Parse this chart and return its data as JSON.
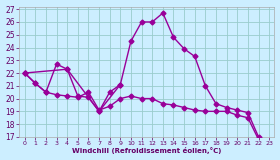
{
  "xlabel": "Windchill (Refroidissement éolien,°C)",
  "bg_color": "#cceeff",
  "grid_color": "#99cccc",
  "line_color": "#990099",
  "xlim": [
    -0.5,
    23.5
  ],
  "ylim": [
    17,
    27.2
  ],
  "xticks": [
    0,
    1,
    2,
    3,
    4,
    5,
    6,
    7,
    8,
    9,
    10,
    11,
    12,
    13,
    14,
    15,
    16,
    17,
    18,
    19,
    20,
    21,
    22,
    23
  ],
  "yticks": [
    17,
    18,
    19,
    20,
    21,
    22,
    23,
    24,
    25,
    26,
    27
  ],
  "series1_x": [
    0,
    1,
    2,
    3,
    4,
    5,
    6,
    7,
    8,
    9,
    10,
    11,
    12,
    13,
    14,
    15,
    16,
    17,
    18,
    19,
    20,
    21,
    22,
    23
  ],
  "series1_y": [
    22.0,
    21.2,
    20.5,
    22.7,
    22.3,
    20.2,
    20.1,
    19.0,
    20.5,
    21.1,
    24.5,
    26.0,
    26.0,
    26.7,
    24.8,
    23.9,
    23.3,
    21.0,
    19.6,
    19.3,
    19.1,
    18.9,
    17.0,
    16.7
  ],
  "series2_x": [
    0,
    1,
    2,
    3,
    4,
    5,
    6,
    7,
    8,
    9,
    10,
    11,
    12,
    13,
    14,
    15,
    16,
    17,
    18,
    19,
    20,
    21,
    22,
    23
  ],
  "series2_y": [
    22.0,
    21.2,
    20.5,
    20.3,
    20.2,
    20.1,
    20.5,
    19.1,
    19.4,
    20.0,
    20.2,
    20.0,
    20.0,
    19.6,
    19.5,
    19.3,
    19.1,
    19.0,
    19.0,
    19.0,
    18.7,
    18.5,
    16.8,
    16.7
  ],
  "series3_x": [
    0,
    4,
    7,
    9
  ],
  "series3_y": [
    22.0,
    22.3,
    19.0,
    21.1
  ],
  "marker": "D",
  "markersize": 2.5,
  "linewidth": 1.0
}
